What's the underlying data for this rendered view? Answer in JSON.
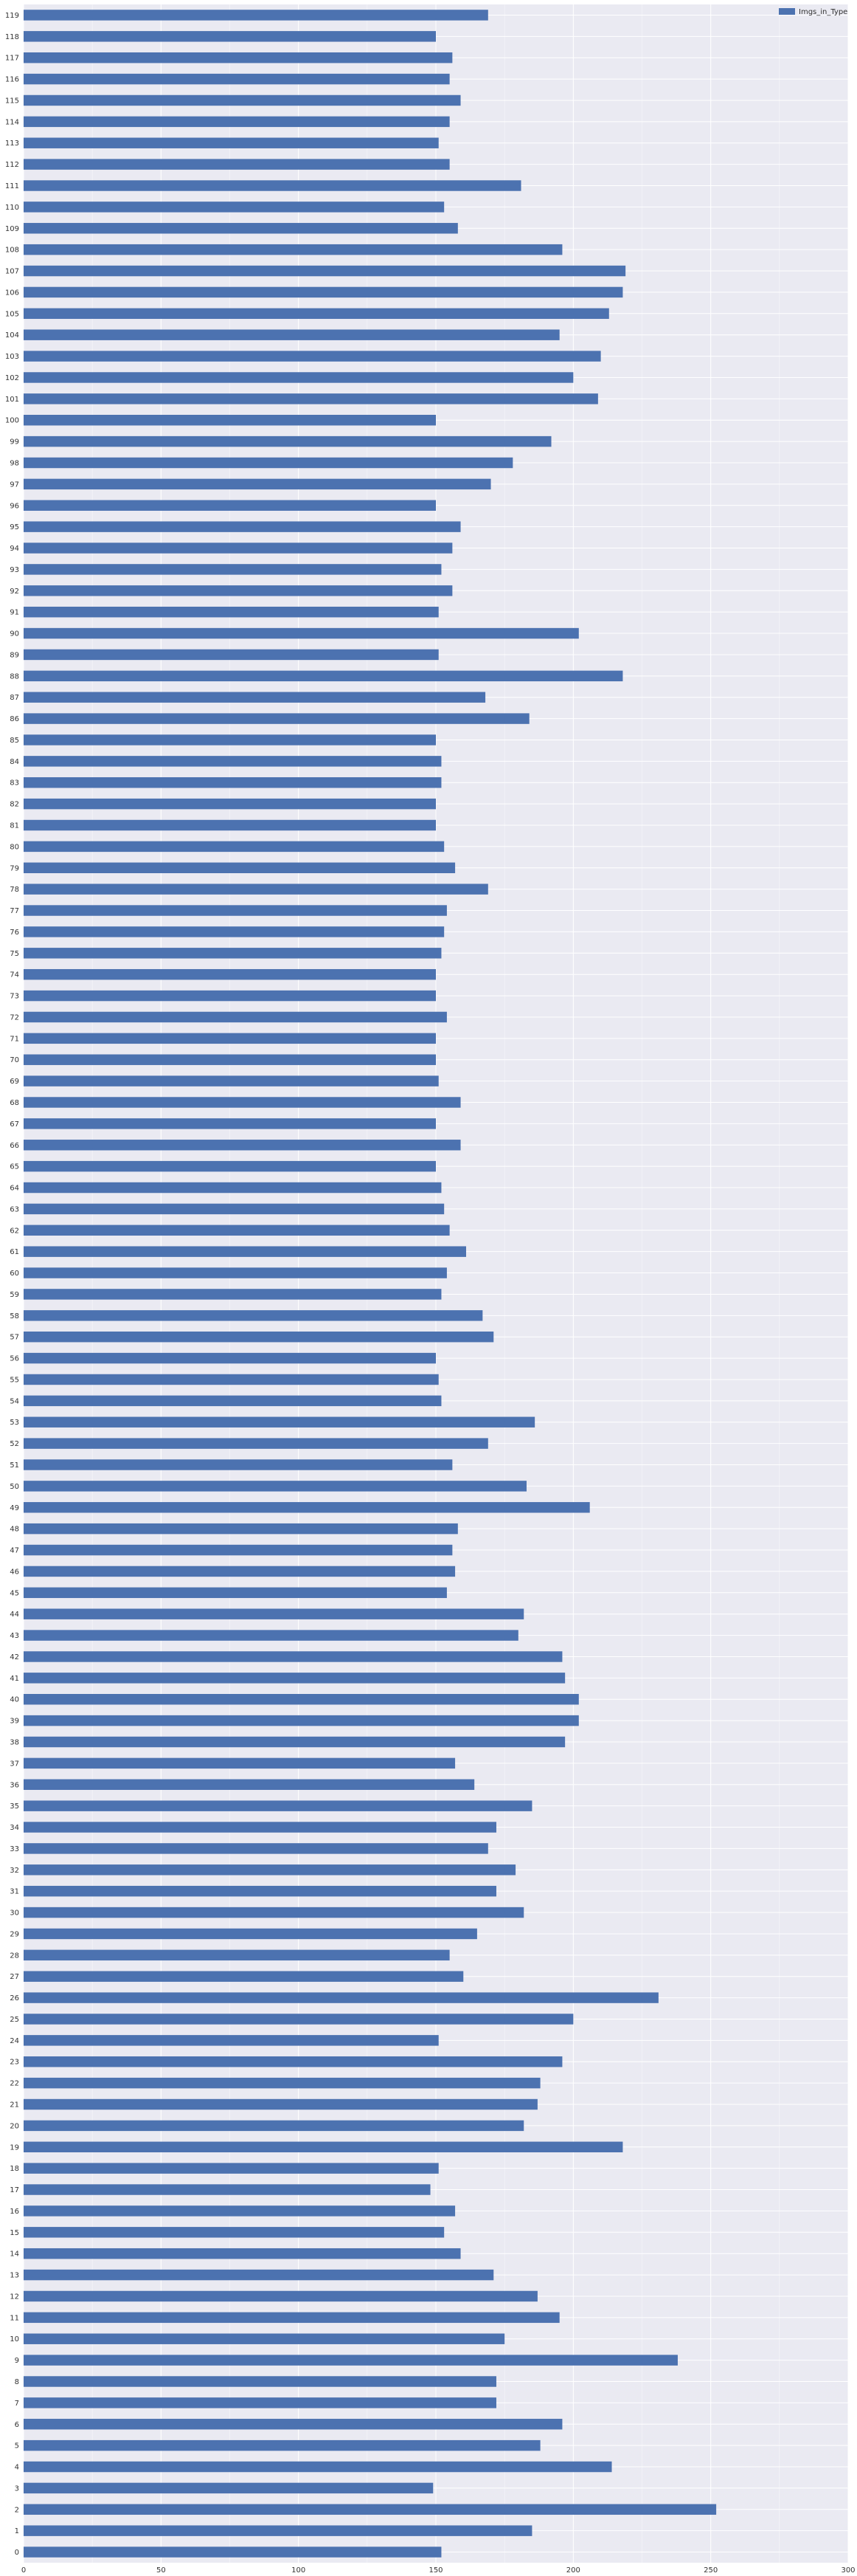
{
  "chart_data": {
    "type": "bar",
    "orientation": "horizontal",
    "title": "",
    "xlabel": "",
    "ylabel": "",
    "xlim": [
      0,
      300
    ],
    "xticks": [
      0,
      50,
      100,
      150,
      200,
      250,
      300
    ],
    "grid": true,
    "legend_position": "top-right",
    "colors": {
      "bar": "#4c72b0",
      "background": "#eaeaf2",
      "grid": "#ffffff"
    },
    "categories": [
      "0",
      "1",
      "2",
      "3",
      "4",
      "5",
      "6",
      "7",
      "8",
      "9",
      "10",
      "11",
      "12",
      "13",
      "14",
      "15",
      "16",
      "17",
      "18",
      "19",
      "20",
      "21",
      "22",
      "23",
      "24",
      "25",
      "26",
      "27",
      "28",
      "29",
      "30",
      "31",
      "32",
      "33",
      "34",
      "35",
      "36",
      "37",
      "38",
      "39",
      "40",
      "41",
      "42",
      "43",
      "44",
      "45",
      "46",
      "47",
      "48",
      "49",
      "50",
      "51",
      "52",
      "53",
      "54",
      "55",
      "56",
      "57",
      "58",
      "59",
      "60",
      "61",
      "62",
      "63",
      "64",
      "65",
      "66",
      "67",
      "68",
      "69",
      "70",
      "71",
      "72",
      "73",
      "74",
      "75",
      "76",
      "77",
      "78",
      "79",
      "80",
      "81",
      "82",
      "83",
      "84",
      "85",
      "86",
      "87",
      "88",
      "89",
      "90",
      "91",
      "92",
      "93",
      "94",
      "95",
      "96",
      "97",
      "98",
      "99",
      "100",
      "101",
      "102",
      "103",
      "104",
      "105",
      "106",
      "107",
      "108",
      "109",
      "110",
      "111",
      "112",
      "113",
      "114",
      "115",
      "116",
      "117",
      "118",
      "119"
    ],
    "series": [
      {
        "name": "Imgs_in_Type",
        "values": [
          152,
          185,
          252,
          149,
          214,
          188,
          196,
          172,
          172,
          238,
          175,
          195,
          187,
          171,
          159,
          153,
          157,
          148,
          151,
          218,
          182,
          187,
          188,
          196,
          151,
          200,
          231,
          160,
          155,
          165,
          182,
          172,
          179,
          169,
          172,
          185,
          164,
          157,
          197,
          202,
          202,
          197,
          196,
          180,
          182,
          154,
          157,
          156,
          158,
          206,
          183,
          156,
          169,
          186,
          152,
          151,
          150,
          171,
          167,
          152,
          154,
          161,
          155,
          153,
          152,
          150,
          159,
          150,
          159,
          151,
          150,
          150,
          154,
          150,
          150,
          152,
          153,
          154,
          169,
          157,
          153,
          150,
          150,
          152,
          152,
          150,
          184,
          168,
          218,
          151,
          202,
          151,
          156,
          152,
          156,
          159,
          150,
          170,
          178,
          192,
          150,
          209,
          200,
          210,
          195,
          213,
          218,
          219,
          196,
          158,
          153,
          181,
          155,
          151,
          155,
          159,
          155,
          156,
          150,
          169
        ]
      }
    ]
  }
}
